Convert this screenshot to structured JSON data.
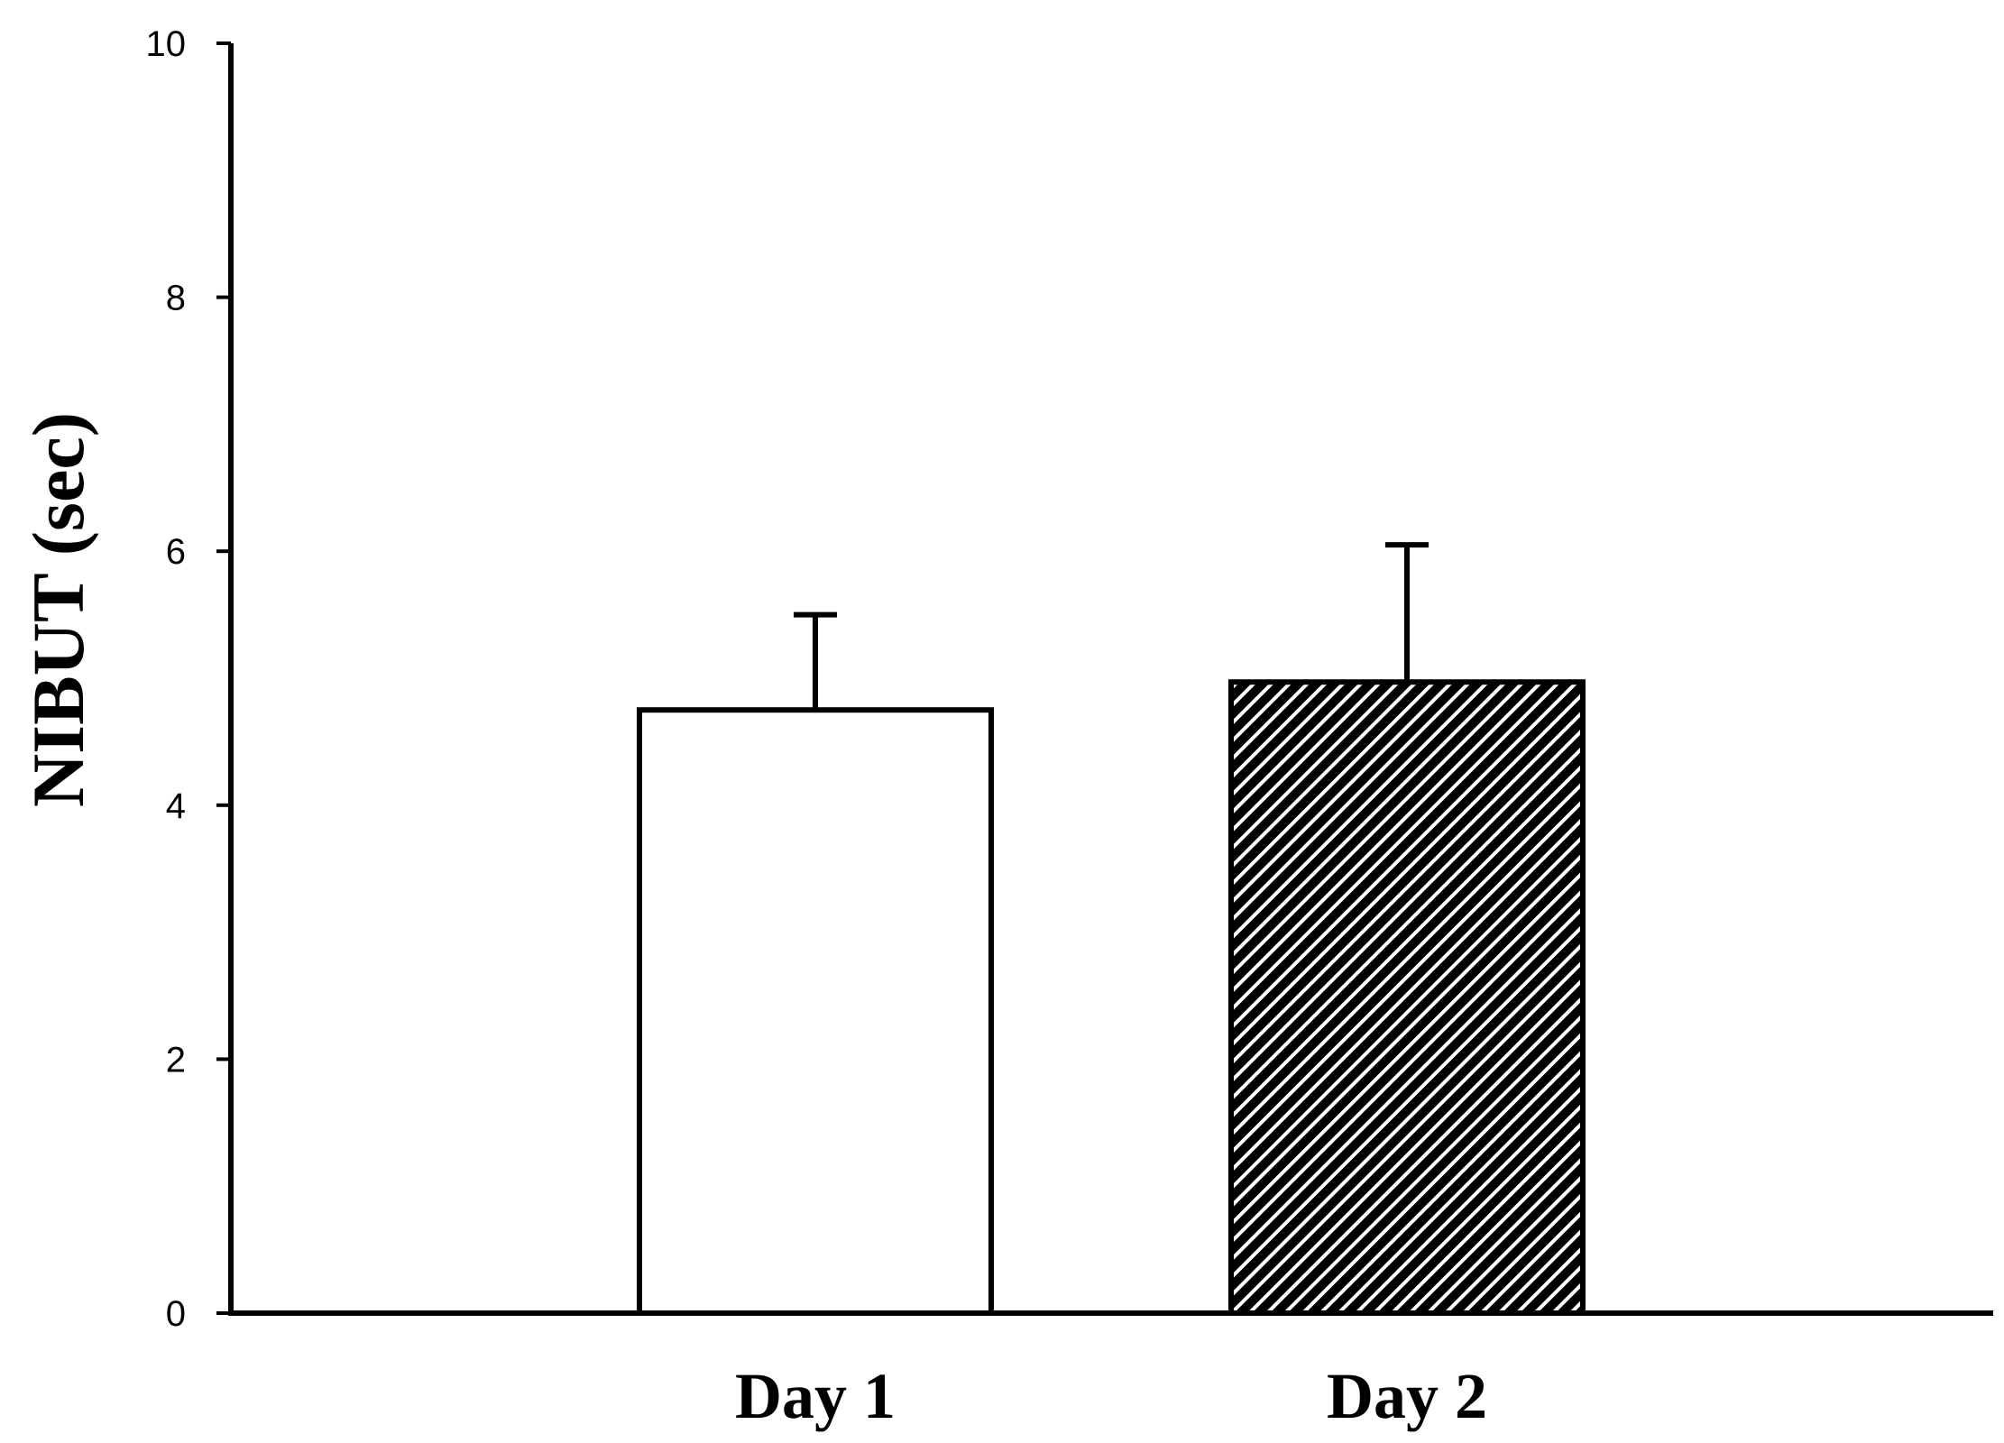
{
  "chart_data": {
    "type": "bar",
    "title": "",
    "xlabel": "",
    "ylabel": "NIBUT (sec)",
    "categories": [
      "Day 1",
      "Day 2"
    ],
    "values": [
      4.75,
      4.97
    ],
    "error_upper": [
      5.5,
      6.05
    ],
    "ylim": [
      0,
      10
    ],
    "yticks": [
      "0",
      "2",
      "4",
      "6",
      "8",
      "10"
    ],
    "grid": false,
    "legend": "none",
    "bar_fills": [
      "white",
      "diagonal-hatch"
    ]
  },
  "colors": {
    "ink": "#000000",
    "background": "#ffffff"
  }
}
